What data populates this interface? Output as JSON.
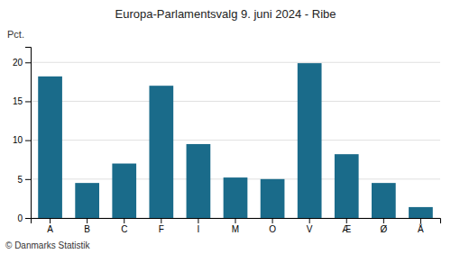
{
  "chart_data": {
    "type": "bar",
    "title": "Europa-Parlamentsvalg 9. juni 2024 - Ribe",
    "y_label": "Pct.",
    "annotations": [
      "© Danmarks Statistik"
    ],
    "categories": [
      "A",
      "B",
      "C",
      "F",
      "I",
      "M",
      "O",
      "V",
      "Æ",
      "Ø",
      "Å"
    ],
    "values": [
      18.2,
      4.5,
      7.0,
      17.0,
      9.5,
      5.2,
      5.0,
      19.9,
      8.2,
      4.5,
      1.4
    ],
    "color": "#1a6b8a",
    "ylim": [
      0,
      22
    ],
    "yticks": [
      0,
      5,
      10,
      15,
      20
    ],
    "grid": true
  }
}
